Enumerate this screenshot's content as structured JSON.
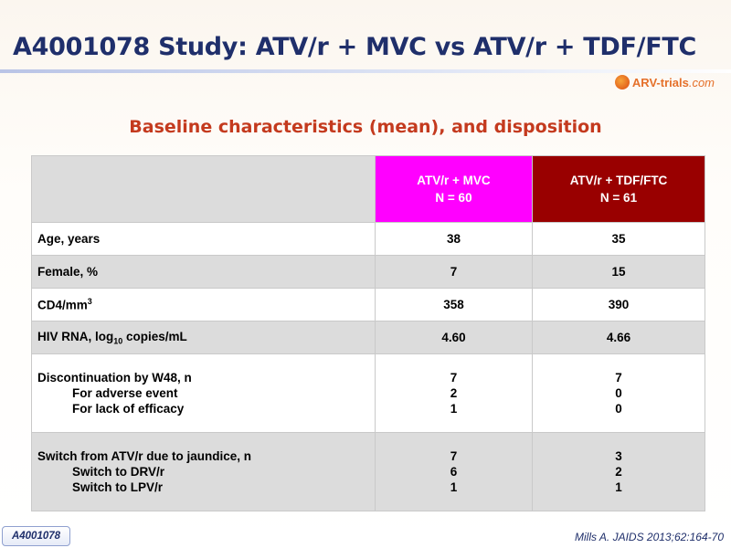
{
  "slide": {
    "title": "A4001078 Study: ATV/r + MVC vs ATV/r + TDF/FTC",
    "subtitle": "Baseline characteristics (mean), and disposition",
    "logo_main": "ARV-trials",
    "logo_suffix": ".com",
    "badge": "A4001078",
    "citation": "Mills A. JAIDS 2013;62:164-70"
  },
  "colors": {
    "title": "#1f2f6b",
    "subtitle": "#c43a1e",
    "mvc_header": "#ff00ff",
    "tdf_header": "#990000",
    "shaded_row": "#dcdcdc"
  },
  "table": {
    "columns": [
      {
        "line1": "ATV/r + MVC",
        "line2": "N = 60"
      },
      {
        "line1": "ATV/r + TDF/FTC",
        "line2": "N = 61"
      }
    ],
    "rows": [
      {
        "label": "Age, years",
        "mvc": "38",
        "tdf": "35"
      },
      {
        "label": "Female, %",
        "mvc": "7",
        "tdf": "15"
      },
      {
        "label": "CD4/mm",
        "label_sup": "3",
        "mvc": "358",
        "tdf": "390"
      },
      {
        "label": "HIV RNA, log",
        "label_sub": "10",
        "label_after": " copies/mL",
        "mvc": "4.60",
        "tdf": "4.66"
      },
      {
        "label": "Discontinuation by W48, n",
        "sub1": "For adverse event",
        "sub2": "For lack of efficacy",
        "mvc": [
          "7",
          "2",
          "1"
        ],
        "tdf": [
          "7",
          "0",
          "0"
        ]
      },
      {
        "label": "Switch from ATV/r due to jaundice, n",
        "sub1": "Switch to DRV/r",
        "sub2": "Switch to LPV/r",
        "mvc": [
          "7",
          "6",
          "1"
        ],
        "tdf": [
          "3",
          "2",
          "1"
        ]
      }
    ]
  }
}
